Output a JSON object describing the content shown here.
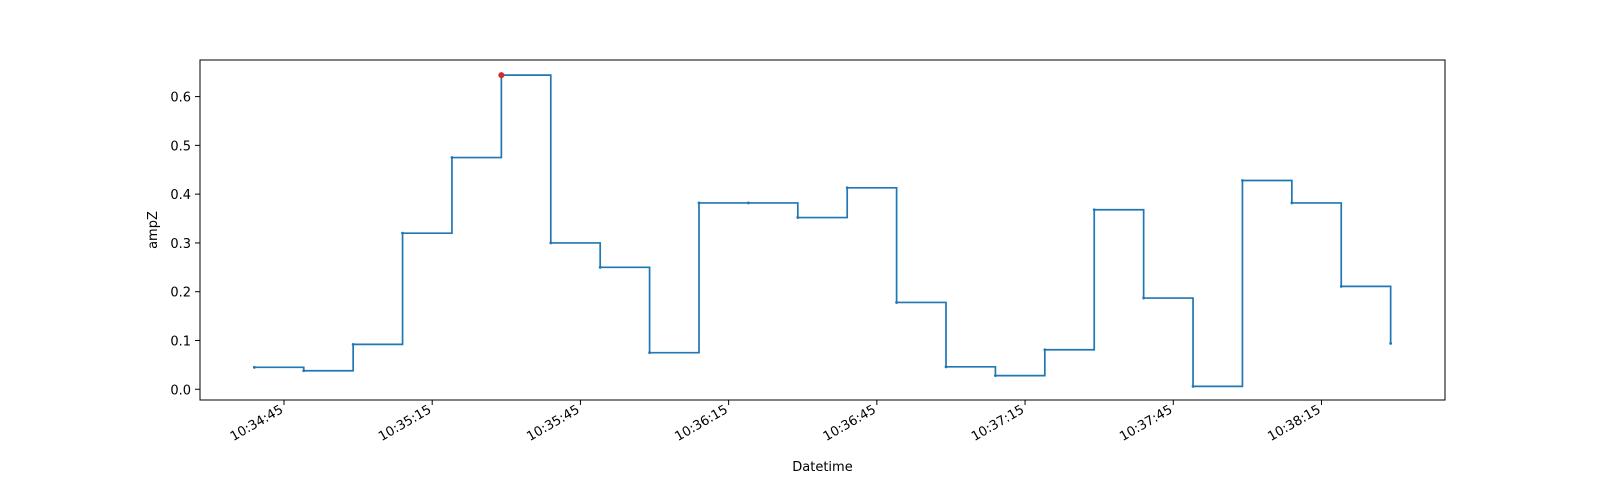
{
  "chart_data": {
    "type": "line",
    "drawstyle": "steps-post",
    "xlabel": "Datetime",
    "ylabel": "ampZ",
    "x": [
      "10:34:39",
      "10:34:49",
      "10:34:59",
      "10:35:09",
      "10:35:19",
      "10:35:29",
      "10:35:39",
      "10:35:49",
      "10:35:59",
      "10:36:09",
      "10:36:19",
      "10:36:29",
      "10:36:39",
      "10:36:49",
      "10:36:59",
      "10:37:09",
      "10:37:19",
      "10:37:29",
      "10:37:39",
      "10:37:49",
      "10:37:59",
      "10:38:09",
      "10:38:19",
      "10:38:29"
    ],
    "series": [
      {
        "name": "",
        "color": "#1f77b4",
        "values": [
          0.045,
          0.038,
          0.092,
          0.32,
          0.475,
          0.644,
          0.3,
          0.25,
          0.075,
          0.382,
          0.382,
          0.352,
          0.413,
          0.178,
          0.046,
          0.028,
          0.081,
          0.368,
          0.187,
          0.006,
          0.428,
          0.382,
          0.211,
          0.094
        ]
      }
    ],
    "highlight": {
      "x": "10:35:29",
      "y": 0.644,
      "color": "#d62728"
    },
    "xticks": [
      "10:34:45",
      "10:35:15",
      "10:35:45",
      "10:36:15",
      "10:36:45",
      "10:37:15",
      "10:37:45",
      "10:38:15"
    ],
    "yticks": [
      "0.0",
      "0.1",
      "0.2",
      "0.3",
      "0.4",
      "0.5",
      "0.6"
    ],
    "xlim": [
      "10:34:28",
      "10:38:40"
    ],
    "ylim": [
      -0.022,
      0.675
    ],
    "grid": false
  }
}
